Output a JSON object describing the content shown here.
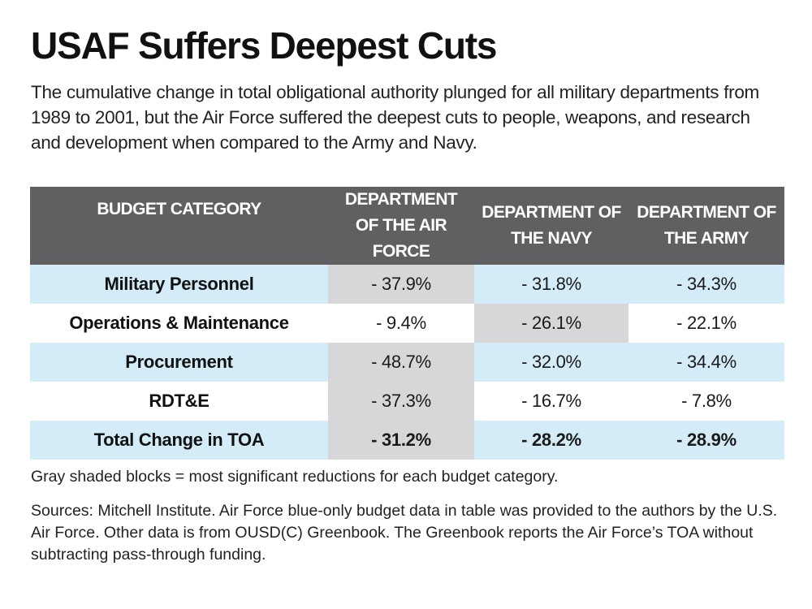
{
  "title": "USAF Suffers Deepest Cuts",
  "intro": "The cumulative change in total obligational authority plunged for all military departments from 1989 to 2001, but the Air Force suffered the deepest cuts to people, weapons, and research and development when compared to the Army and Navy.",
  "table": {
    "headers": {
      "category": "BUDGET CATEGORY",
      "air_force": "DEPARTMENT OF THE AIR FORCE",
      "navy": "DEPARTMENT OF THE NAVY",
      "army": "DEPARTMENT OF THE ARMY"
    },
    "rows": [
      {
        "category": "Military Personnel",
        "air_force": "- 37.9%",
        "navy": "- 31.8%",
        "army": "- 34.3%",
        "most_significant": "air_force"
      },
      {
        "category": "Operations & Maintenance",
        "air_force": "- 9.4%",
        "navy": "- 26.1%",
        "army": "- 22.1%",
        "most_significant": "navy"
      },
      {
        "category": "Procurement",
        "air_force": "- 48.7%",
        "navy": "- 32.0%",
        "army": "- 34.4%",
        "most_significant": "air_force"
      },
      {
        "category": "RDT&E",
        "air_force": "- 37.3%",
        "navy": "- 16.7%",
        "army": "- 7.8%",
        "most_significant": "air_force"
      },
      {
        "category": "Total Change in TOA",
        "air_force": "- 31.2%",
        "navy": "- 28.2%",
        "army": "- 28.9%",
        "most_significant": "air_force"
      }
    ]
  },
  "note": "Gray shaded blocks = most significant reductions for each budget category.",
  "sources": "Sources: Mitchell Institute. Air Force blue-only budget data in table was provided to the authors by the U.S. Air Force. Other data is from OUSD(C) Greenbook. The Greenbook reports the Air Force’s TOA without subtracting pass-through funding.",
  "colors": {
    "header_bg": "#606062",
    "row_blue": "#d3ecf7",
    "highlight_gray": "#d7d7d9",
    "text": "#111111"
  }
}
